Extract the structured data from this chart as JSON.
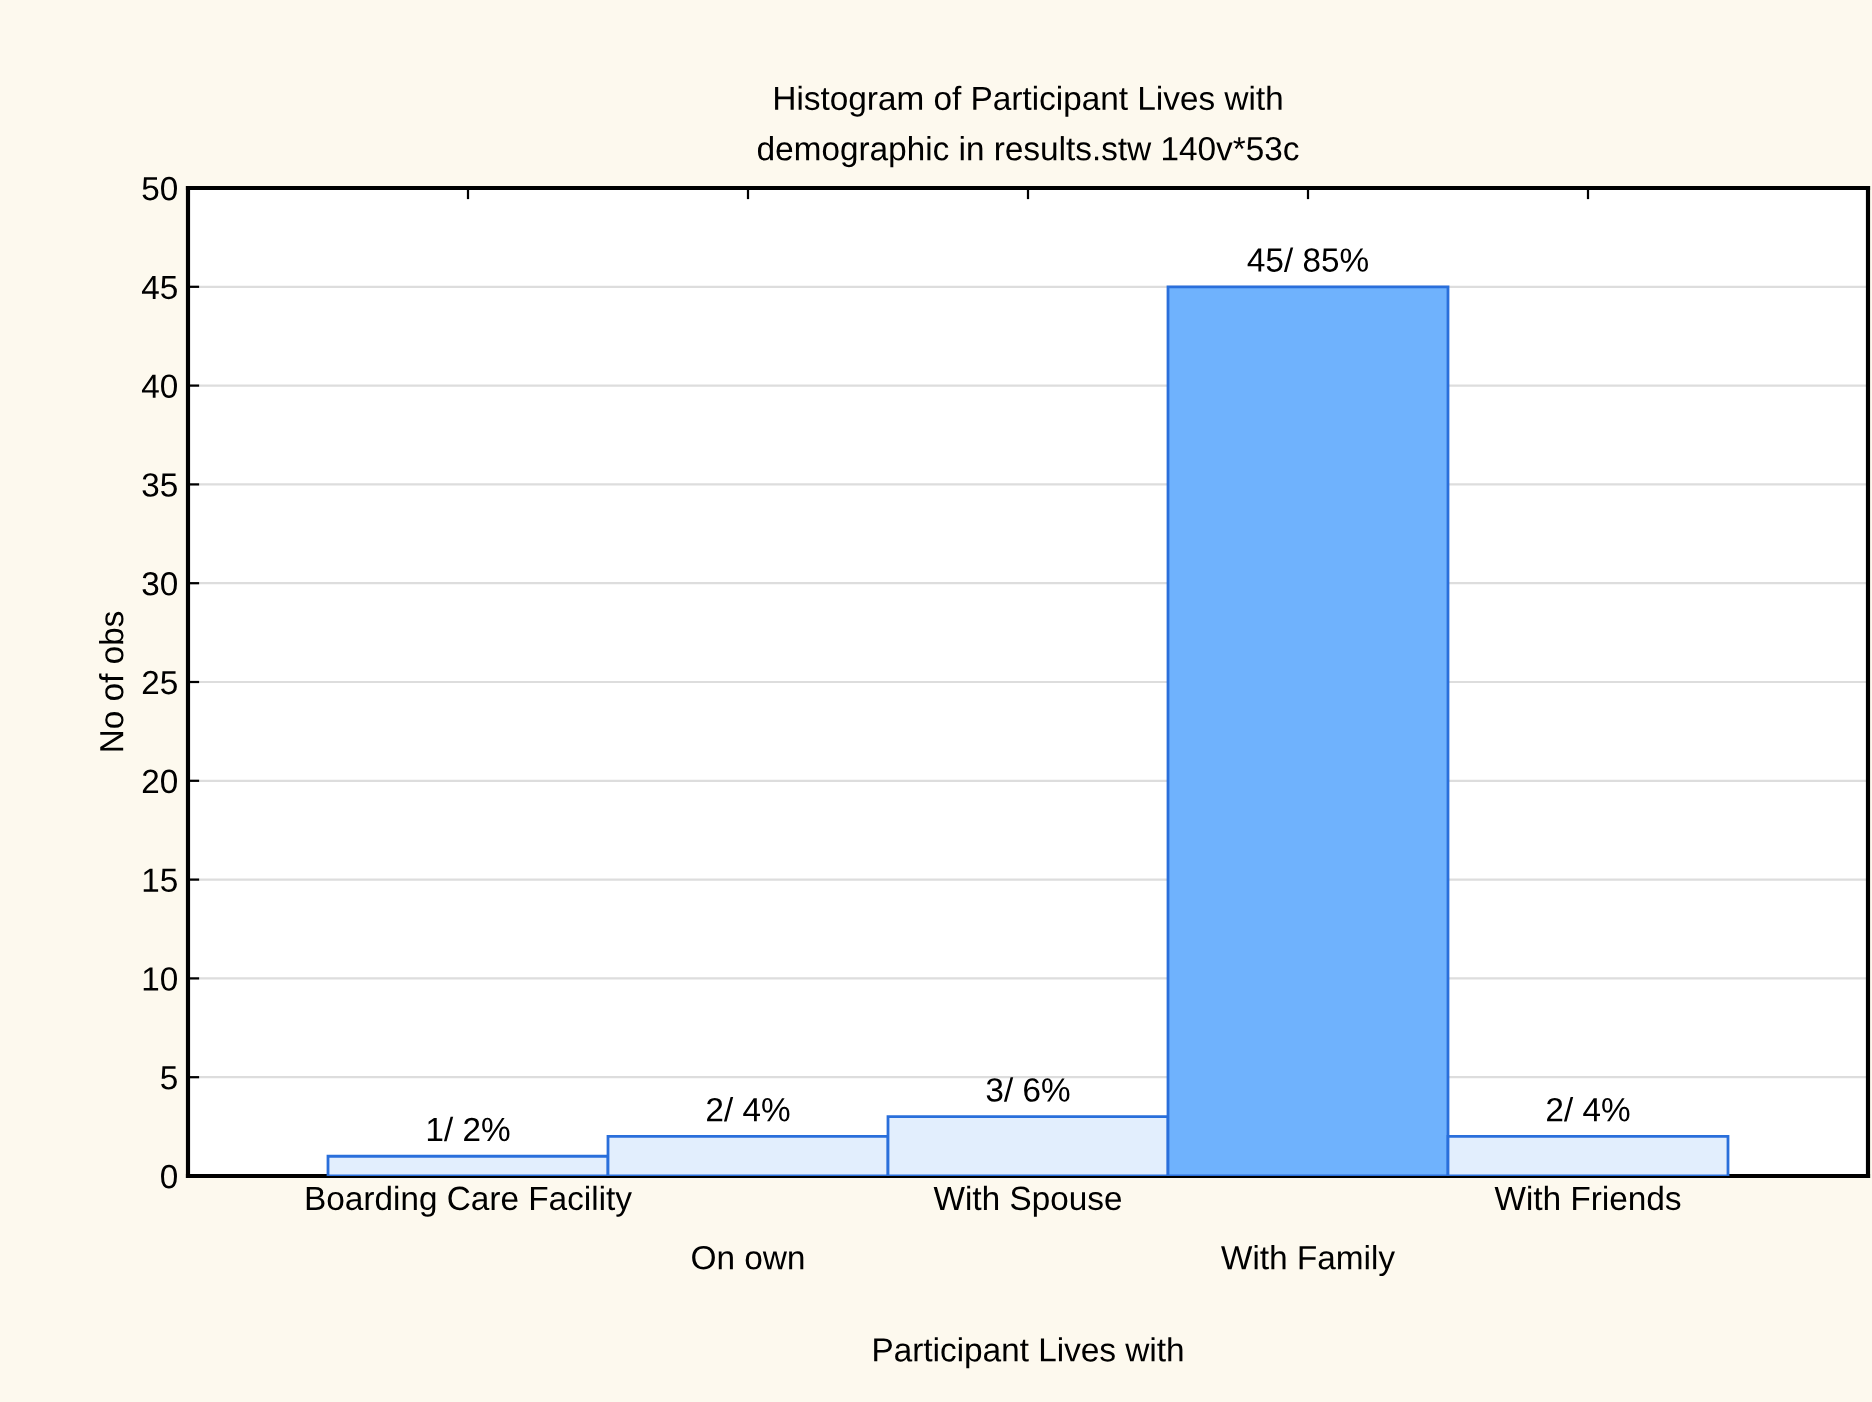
{
  "chart_data": {
    "type": "bar",
    "title": "Histogram of Participant Lives with\ndemographic in results.stw 140v*53c",
    "xlabel": "Participant Lives with",
    "ylabel": "No of obs",
    "categories": [
      "Boarding Care Facility",
      "On own",
      "With Spouse",
      "With Family",
      "With Friends"
    ],
    "values": [
      1,
      2,
      3,
      45,
      2
    ],
    "value_labels": [
      "1/ 2%",
      "2/ 4%",
      "3/ 6%",
      "45/ 85%",
      "2/ 4%"
    ],
    "colors": [
      "#e2eefd",
      "#e2eefd",
      "#e2eefd",
      "#6fb2fd",
      "#e2eefd"
    ],
    "ylim": [
      0,
      50
    ],
    "yticks": [
      0,
      5,
      10,
      15,
      20,
      25,
      30,
      35,
      40,
      45,
      50
    ],
    "grid": "y",
    "legend": false
  }
}
